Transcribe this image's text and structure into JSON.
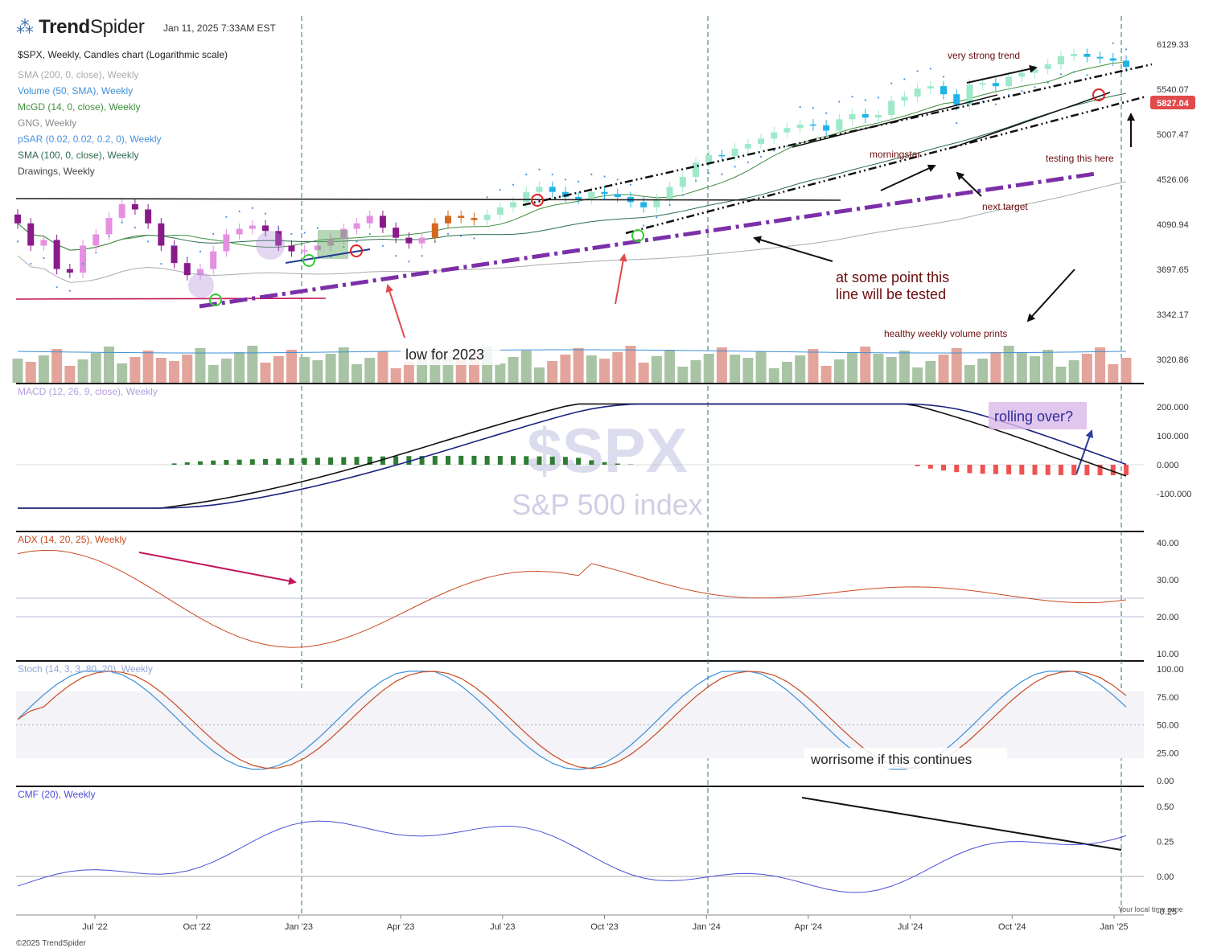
{
  "header": {
    "logo_bold": "Trend",
    "logo_light": "Spider",
    "datetime": "Jan 11, 2025 7:33AM EST",
    "chart_title": "$SPX, Weekly, Candles chart (Logarithmic scale)"
  },
  "indicators": [
    {
      "label": "SMA (200, 0, close), Weekly",
      "color": "#aaaaaa"
    },
    {
      "label": "Volume (50, SMA), Weekly",
      "color": "#3d8fd6"
    },
    {
      "label": "McGD (14, 0, close), Weekly",
      "color": "#3f8f3f"
    },
    {
      "label": "GNG, Weekly",
      "color": "#888888"
    },
    {
      "label": "pSAR (0.02, 0.02, 0.2, 0), Weekly",
      "color": "#4a90e2"
    },
    {
      "label": "SMA (100, 0, close), Weekly",
      "color": "#2d6b4f"
    },
    {
      "label": "Drawings, Weekly",
      "color": "#444444"
    }
  ],
  "footer": {
    "copyright": "©2025 TrendSpider",
    "timezone": "Your local time zone"
  },
  "watermark": {
    "symbol": "$SPX",
    "name": "S&P 500 index"
  },
  "price_tag": "5827.04",
  "annotations": {
    "very_strong_trend": "very strong trend",
    "morningstar": "morningstar",
    "testing": "testing this here",
    "next_target": "next target",
    "tested_line1": "at some point this",
    "tested_line2": "line will be tested",
    "healthy_volume": "healthy weekly volume prints",
    "low_2023": "low for 2023",
    "rolling_over": "rolling over?",
    "worrisome": "worrisome if this continues"
  },
  "chart_data": [
    {
      "type": "candlestick",
      "title": "$SPX, Weekly, Candles chart (Logarithmic scale)",
      "scale": "log",
      "y_ticks": [
        6129.33,
        5540.07,
        5007.47,
        4526.06,
        4090.94,
        3697.65,
        3342.17,
        3020.86
      ],
      "x_ticks": [
        "Jul '22",
        "Oct '22",
        "Jan '23",
        "Apr '23",
        "Jul '23",
        "Oct '23",
        "Jan '24",
        "Apr '24",
        "Jul '24",
        "Oct '24",
        "Jan '25"
      ],
      "last_price": 5827.04,
      "closes_approx": [
        4100,
        3900,
        3950,
        3700,
        3670,
        3900,
        4000,
        4150,
        4280,
        4230,
        4100,
        3900,
        3750,
        3650,
        3700,
        3850,
        4000,
        4050,
        4080,
        4030,
        3900,
        3850,
        3860,
        3900,
        3960,
        4050,
        4100,
        4170,
        4060,
        3970,
        3920,
        3970,
        4100,
        4170,
        4150,
        4130,
        4180,
        4250,
        4300,
        4400,
        4450,
        4400,
        4350,
        4330,
        4400,
        4380,
        4350,
        4300,
        4250,
        4330,
        4450,
        4550,
        4700,
        4780,
        4770,
        4850,
        4900,
        4960,
        5030,
        5080,
        5120,
        5110,
        5050,
        5180,
        5240,
        5200,
        5230,
        5400,
        5450,
        5550,
        5580,
        5480,
        5350,
        5600,
        5620,
        5580,
        5700,
        5750,
        5800,
        5860,
        5970,
        6000,
        5960,
        5940,
        5910,
        5827
      ],
      "ylim": [
        2950,
        6300
      ]
    },
    {
      "type": "line",
      "title": "MACD (12, 26, 9, close), Weekly",
      "y_ticks": [
        200,
        100,
        0,
        -100
      ],
      "ylim": [
        -200,
        220
      ]
    },
    {
      "type": "line",
      "title": "ADX (14, 20, 25), Weekly",
      "y_ticks": [
        40,
        30,
        20,
        10
      ],
      "ylim": [
        8,
        43
      ]
    },
    {
      "type": "line",
      "title": "Stoch (14, 3, 3, 80, 20), Weekly",
      "y_ticks": [
        100,
        75,
        50,
        25,
        0
      ],
      "ylim": [
        -5,
        104
      ]
    },
    {
      "type": "line",
      "title": "CMF (20), Weekly",
      "y_ticks": [
        0.5,
        0.25,
        0,
        -0.25
      ],
      "ylim": [
        -0.27,
        0.58
      ]
    }
  ]
}
